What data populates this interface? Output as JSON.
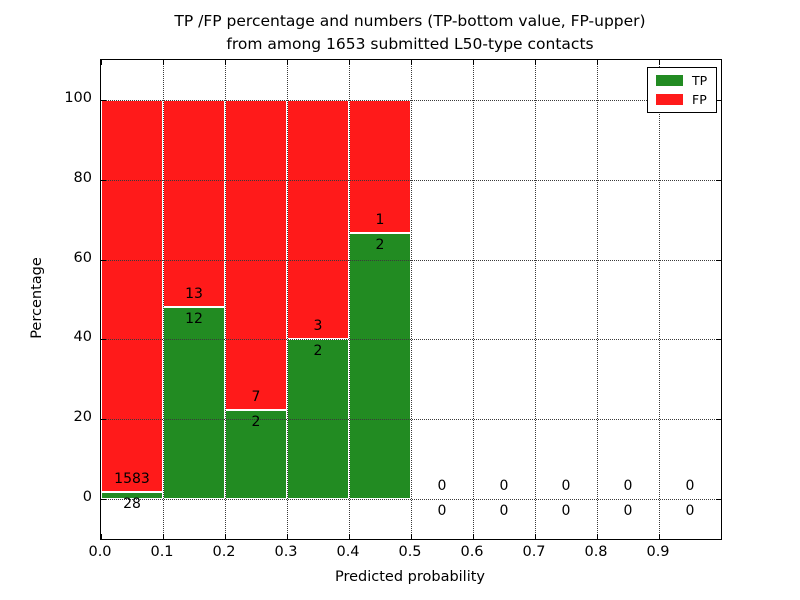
{
  "figure": {
    "title_line1": "TP /FP percentage and numbers (TP-bottom value, FP-upper)",
    "title_line2": "from among 1653 submitted L50-type contacts"
  },
  "chart_data": {
    "type": "bar",
    "stacked": true,
    "title": "TP /FP percentage and numbers (TP-bottom value, FP-upper) from among 1653 submitted L50-type contacts",
    "xlabel": "Predicted probability",
    "ylabel": "Percentage",
    "xlim": [
      0.0,
      1.0
    ],
    "ylim": [
      -10,
      110
    ],
    "xticks": [
      "0.0",
      "0.1",
      "0.2",
      "0.3",
      "0.4",
      "0.5",
      "0.6",
      "0.7",
      "0.8",
      "0.9"
    ],
    "yticks": [
      0,
      20,
      40,
      60,
      80,
      100
    ],
    "grid": true,
    "bin_width": 0.1,
    "total_contacts": 1653,
    "legend": {
      "position": "upper right",
      "items": [
        {
          "label": "TP",
          "color": "#228b22"
        },
        {
          "label": "FP",
          "color": "#ff1a1a"
        }
      ]
    },
    "bins": [
      {
        "x_start": 0.0,
        "x_end": 0.1,
        "tp": 28,
        "fp": 1583,
        "tp_pct": 1.74,
        "fp_pct": 98.26
      },
      {
        "x_start": 0.1,
        "x_end": 0.2,
        "tp": 12,
        "fp": 13,
        "tp_pct": 48.0,
        "fp_pct": 52.0
      },
      {
        "x_start": 0.2,
        "x_end": 0.3,
        "tp": 2,
        "fp": 7,
        "tp_pct": 22.22,
        "fp_pct": 77.78
      },
      {
        "x_start": 0.3,
        "x_end": 0.4,
        "tp": 2,
        "fp": 3,
        "tp_pct": 40.0,
        "fp_pct": 60.0
      },
      {
        "x_start": 0.4,
        "x_end": 0.5,
        "tp": 2,
        "fp": 1,
        "tp_pct": 66.67,
        "fp_pct": 33.33
      },
      {
        "x_start": 0.5,
        "x_end": 0.6,
        "tp": 0,
        "fp": 0,
        "tp_pct": 0,
        "fp_pct": 0
      },
      {
        "x_start": 0.6,
        "x_end": 0.7,
        "tp": 0,
        "fp": 0,
        "tp_pct": 0,
        "fp_pct": 0
      },
      {
        "x_start": 0.7,
        "x_end": 0.8,
        "tp": 0,
        "fp": 0,
        "tp_pct": 0,
        "fp_pct": 0
      },
      {
        "x_start": 0.8,
        "x_end": 0.9,
        "tp": 0,
        "fp": 0,
        "tp_pct": 0,
        "fp_pct": 0
      },
      {
        "x_start": 0.9,
        "x_end": 1.0,
        "tp": 0,
        "fp": 0,
        "tp_pct": 0,
        "fp_pct": 0
      }
    ],
    "colors": {
      "tp": "#228b22",
      "fp": "#ff1a1a",
      "bar_edge": "#ffffff",
      "grid": "#3a3a3a",
      "frame": "#000000",
      "text": "#000000",
      "background": "#ffffff"
    }
  }
}
